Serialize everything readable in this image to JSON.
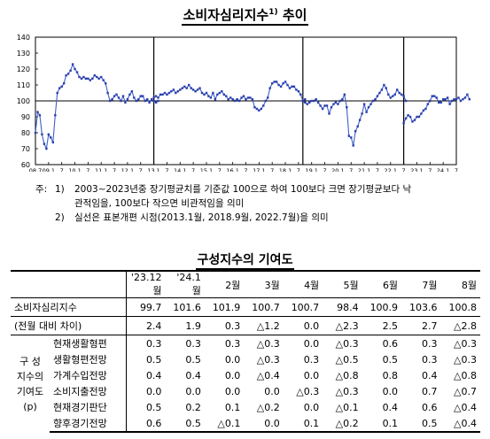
{
  "title": "소비자심리지수",
  "title_sup": "1)",
  "title_suffix": "추이",
  "chart_data": {
    "type": "line",
    "ylim": [
      60,
      140
    ],
    "yticks": [
      60,
      70,
      80,
      90,
      100,
      110,
      120,
      130,
      140
    ],
    "xtick_labels": [
      "08.7",
      "09.1",
      "7",
      "10.1",
      "7",
      "11.1",
      "7",
      "12.1",
      "7",
      "13.1",
      "7",
      "14.1",
      "7",
      "15.1",
      "7",
      "16.1",
      "7",
      "17.1",
      "7",
      "18.1",
      "7",
      "19.1",
      "7",
      "20.1",
      "7",
      "21.1",
      "7",
      "22.1",
      "7",
      "23.1",
      "7",
      "24.1",
      "7"
    ],
    "reference_line": 100,
    "series_breaks": [
      "13.1",
      "18.9",
      "22.7"
    ],
    "series": [
      {
        "start": "2008.7",
        "values": [
          80,
          93,
          91,
          79,
          73,
          70,
          79,
          77,
          74,
          91,
          105,
          108,
          109,
          111,
          116,
          117,
          119,
          123,
          120,
          118,
          115,
          114,
          115,
          114,
          114,
          113,
          114,
          116,
          115,
          114,
          115,
          113,
          111,
          105,
          100,
          101,
          103,
          104,
          102,
          100,
          103,
          99,
          101,
          104,
          106,
          102,
          100,
          101,
          103,
          103,
          100,
          101,
          99,
          101,
          100,
          99,
          100
        ],
        "break_after_index": 53
      },
      {
        "start": "2013.1",
        "values": [
          102,
          103,
          102,
          104,
          104,
          105,
          104,
          105,
          106,
          107,
          105,
          106,
          107,
          108,
          109,
          108,
          110,
          108,
          107,
          106,
          107,
          108,
          105,
          104,
          105,
          103,
          102,
          105,
          101,
          104,
          105,
          106,
          104,
          103,
          101,
          102,
          101,
          100,
          101,
          100,
          102,
          103,
          101,
          102,
          102,
          101,
          96,
          95,
          94,
          95,
          97,
          100,
          102,
          108,
          111,
          112,
          112,
          110,
          109,
          111,
          112,
          110,
          108,
          109,
          109,
          107,
          106,
          104,
          100,
          101
        ],
        "break_after_index": 69
      },
      {
        "start": "2018.9",
        "values": [
          100,
          99,
          98,
          99,
          100,
          100,
          101,
          99,
          97,
          95,
          97,
          97,
          92,
          96,
          98,
          99,
          98,
          100,
          101,
          104,
          96,
          78,
          77,
          72,
          81,
          84,
          88,
          92,
          98,
          93,
          96,
          98,
          100,
          101,
          103,
          105,
          107,
          110,
          108,
          104,
          102,
          103,
          104,
          107,
          105,
          104,
          103,
          100
        ],
        "break_after_index": 47
      },
      {
        "start": "2022.7",
        "values": [
          86,
          89,
          91,
          90,
          87,
          88,
          90,
          90,
          92,
          94,
          95,
          98,
          100,
          103,
          103,
          102,
          99,
          99,
          101,
          101,
          102,
          98,
          100,
          101,
          101,
          102,
          100,
          101,
          102,
          104,
          101
        ]
      }
    ]
  },
  "notes": {
    "prefix": "주:",
    "items": [
      {
        "num": "1)",
        "lines": [
          "2003∼2023년중 장기평균치를 기준값 100으로 하여 100보다 크면 장기평균보다 낙",
          "관적임을, 100보다 작으면 비관적임을 의미"
        ]
      },
      {
        "num": "2)",
        "lines": [
          "실선은 표본개편 시점(2013.1월, 2018.9월, 2022.7월)을 의미"
        ]
      }
    ]
  },
  "table_title": "구성지수의 기여도",
  "table": {
    "columns": [
      "'23.12월",
      "'24.1월",
      "2월",
      "3월",
      "4월",
      "5월",
      "6월",
      "7월",
      "8월"
    ],
    "csi": {
      "label": "소비자심리지수",
      "values": [
        "99.7",
        "101.6",
        "101.9",
        "100.7",
        "100.7",
        "98.4",
        "100.9",
        "103.6",
        "100.8"
      ]
    },
    "change": {
      "label": "(전월 대비 차이)",
      "values": [
        "2.4",
        "1.9",
        "0.3",
        "△1.2",
        "0.0",
        "△2.3",
        "2.5",
        "2.7",
        "△2.8"
      ]
    },
    "group_label": [
      "구  성",
      "지수의",
      "기여도",
      "(p)"
    ],
    "components": [
      {
        "label": "현재생활형편",
        "values": [
          "0.3",
          "0.3",
          "0.3",
          "△0.3",
          "0.0",
          "△0.3",
          "0.6",
          "0.3",
          "△0.3"
        ]
      },
      {
        "label": "생활형편전망",
        "values": [
          "0.5",
          "0.5",
          "0.0",
          "△0.3",
          "0.3",
          "△0.5",
          "0.5",
          "0.3",
          "△0.3"
        ]
      },
      {
        "label": "가계수입전망",
        "values": [
          "0.4",
          "0.4",
          "0.0",
          "△0.4",
          "0.0",
          "△0.8",
          "0.8",
          "0.4",
          "△0.8"
        ]
      },
      {
        "label": "소비지출전망",
        "values": [
          "0.0",
          "0.0",
          "0.0",
          "0.0",
          "△0.3",
          "△0.3",
          "0.0",
          "0.7",
          "△0.7"
        ]
      },
      {
        "label": "현재경기판단",
        "values": [
          "0.5",
          "0.2",
          "0.1",
          "△0.2",
          "0.0",
          "△0.1",
          "0.4",
          "0.6",
          "△0.4"
        ]
      },
      {
        "label": "향후경기전망",
        "values": [
          "0.6",
          "0.5",
          "△0.1",
          "0.0",
          "0.1",
          "△0.2",
          "0.1",
          "0.5",
          "△0.4"
        ]
      }
    ]
  }
}
